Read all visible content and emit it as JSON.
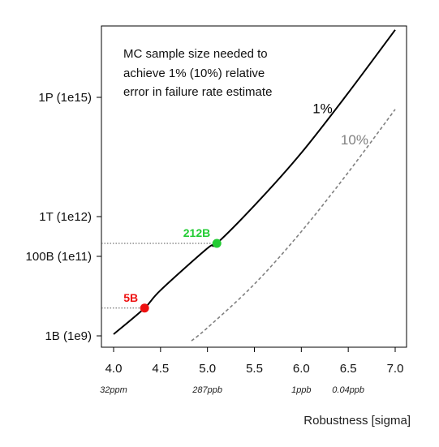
{
  "chart_data": {
    "type": "line",
    "title": "",
    "annotation_lines": [
      "MC sample size needed to",
      "achieve 1% (10%) relative",
      "error in failure rate estimate"
    ],
    "xlabel": "Robustness  [sigma]",
    "ylabel": "",
    "xlim": [
      3.95,
      7.05
    ],
    "ylim_log10": [
      8.9,
      16.9
    ],
    "y_scale": "log",
    "grid": false,
    "x_ticks": [
      {
        "value": 4.0,
        "label": "4.0"
      },
      {
        "value": 4.5,
        "label": "4.5"
      },
      {
        "value": 5.0,
        "label": "5.0"
      },
      {
        "value": 5.5,
        "label": "5.5"
      },
      {
        "value": 6.0,
        "label": "6.0"
      },
      {
        "value": 6.5,
        "label": "6.5"
      },
      {
        "value": 7.0,
        "label": "7.0"
      }
    ],
    "x_sublabels": [
      {
        "value": 4.0,
        "label": "32ppm"
      },
      {
        "value": 5.0,
        "label": "287ppb"
      },
      {
        "value": 6.0,
        "label": "1ppb"
      },
      {
        "value": 6.5,
        "label": "0.04ppb"
      }
    ],
    "y_ticks": [
      {
        "value": 1000000000.0,
        "label": "1B (1e9)"
      },
      {
        "value": 100000000000.0,
        "label": "100B (1e11)"
      },
      {
        "value": 1000000000000.0,
        "label": "1T (1e12)"
      },
      {
        "value": 1000000000000000.0,
        "label": "1P (1e15)"
      }
    ],
    "series": [
      {
        "name": "1%",
        "style": "solid",
        "color": "#000000",
        "x": [
          4.0,
          4.33,
          4.5,
          5.0,
          5.1,
          5.5,
          6.0,
          6.5,
          7.0
        ],
        "y": [
          1100000000.0,
          5000000000.0,
          14000000000.0,
          160000000000.0,
          212000000000.0,
          1900000000000.0,
          40000000000000.0,
          1300000000000000.0,
          5e+16
        ]
      },
      {
        "name": "10%",
        "style": "dashed",
        "color": "#808080",
        "x": [
          4.83,
          5.0,
          5.5,
          6.0,
          6.5,
          7.0
        ],
        "y": [
          750000000.0,
          1600000000.0,
          20000000000.0,
          420000000000.0,
          13000000000000.0,
          500000000000000.0
        ]
      }
    ],
    "highlight_points": [
      {
        "label": "5B",
        "x": 4.33,
        "y": 5000000000.0,
        "color": "#ee1111"
      },
      {
        "label": "212B",
        "x": 5.1,
        "y": 212000000000.0,
        "color": "#22cc33"
      }
    ],
    "series_label_positions": [
      {
        "text": "1%",
        "x": 6.12,
        "y": 400000000000000.0
      },
      {
        "text": "10%",
        "x": 6.42,
        "y": 65000000000000.0
      }
    ]
  }
}
